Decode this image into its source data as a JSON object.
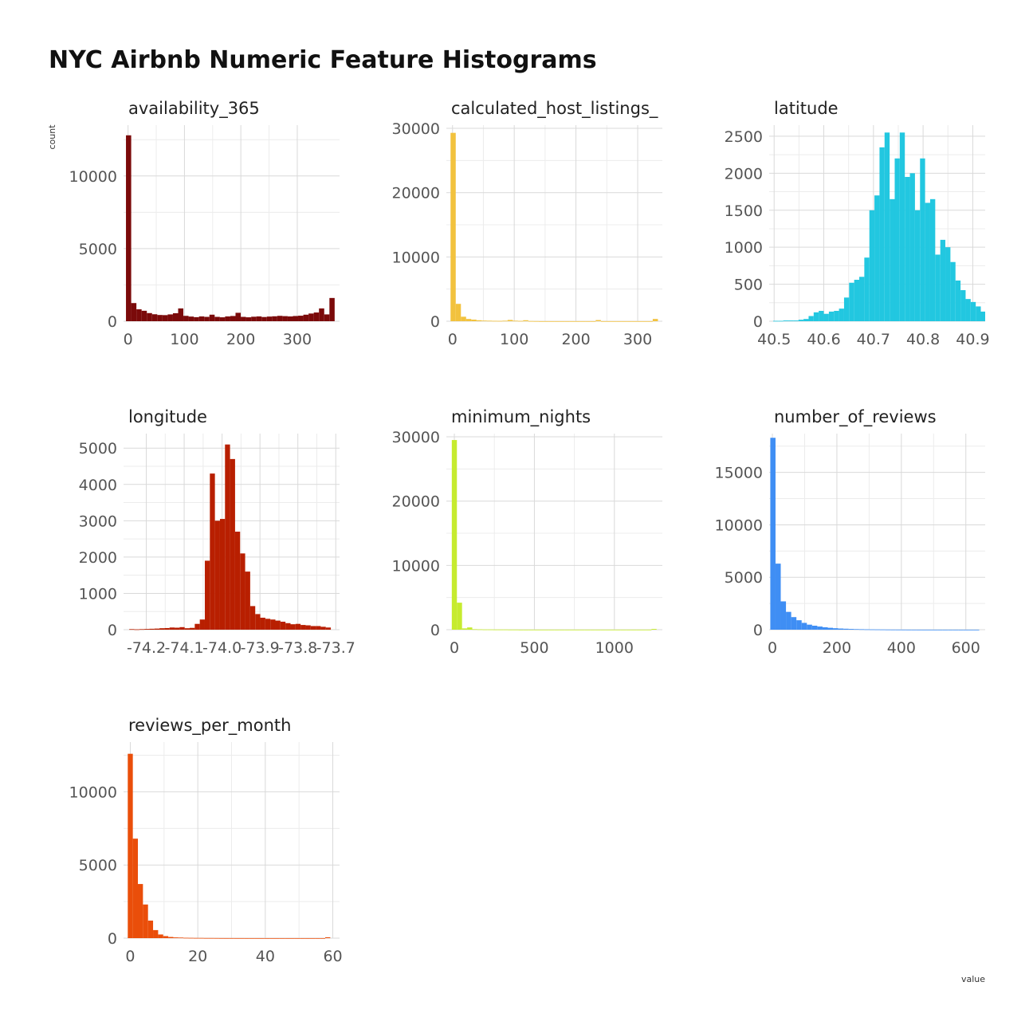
{
  "chart": {
    "title": "NYC Airbnb Numeric Feature Histograms",
    "xlabel": "value",
    "ylabel": "count"
  },
  "chart_data": [
    {
      "type": "bar",
      "title": "availability_365",
      "color": "#7B0A0A",
      "xlim": [
        -8,
        375
      ],
      "ylim": [
        0,
        13500
      ],
      "x_ticks": [
        0,
        100,
        200,
        300
      ],
      "x_tick_labels": [
        "0",
        "100",
        "200",
        "300"
      ],
      "y_ticks": [
        0,
        5000,
        10000
      ],
      "y_tick_labels": [
        "0",
        "5000",
        "10000"
      ],
      "bin_start": -3.7,
      "bin_width": 9.25,
      "values": [
        12800,
        1250,
        820,
        720,
        560,
        480,
        430,
        420,
        470,
        550,
        880,
        370,
        320,
        280,
        330,
        300,
        450,
        300,
        270,
        330,
        360,
        580,
        300,
        270,
        310,
        330,
        290,
        320,
        340,
        370,
        350,
        330,
        360,
        380,
        450,
        530,
        600,
        880,
        470,
        1600
      ]
    },
    {
      "type": "bar",
      "title": "calculated_host_listings_",
      "color": "#F2C23E",
      "xlim": [
        -10,
        340
      ],
      "ylim": [
        0,
        30500
      ],
      "x_ticks": [
        0,
        100,
        200,
        300
      ],
      "x_tick_labels": [
        "0",
        "100",
        "200",
        "300"
      ],
      "y_ticks": [
        0,
        10000,
        20000,
        30000
      ],
      "y_tick_labels": [
        "0",
        "10000",
        "20000",
        "30000"
      ],
      "bin_start": -3.2,
      "bin_width": 8.4,
      "values": [
        29300,
        2700,
        700,
        350,
        250,
        150,
        100,
        80,
        60,
        50,
        80,
        200,
        80,
        50,
        150,
        30,
        20,
        10,
        10,
        10,
        10,
        10,
        10,
        10,
        10,
        10,
        10,
        10,
        180,
        10,
        10,
        10,
        10,
        10,
        10,
        10,
        10,
        10,
        10,
        350
      ]
    },
    {
      "type": "bar",
      "title": "latitude",
      "color": "#22C7E0",
      "xlim": [
        40.49,
        40.925
      ],
      "ylim": [
        0,
        2650
      ],
      "x_ticks": [
        40.5,
        40.6,
        40.7,
        40.8,
        40.9
      ],
      "x_tick_labels": [
        "40.5",
        "40.6",
        "40.7",
        "40.8",
        "40.9"
      ],
      "y_ticks": [
        0,
        500,
        1000,
        1500,
        2000,
        2500
      ],
      "y_tick_labels": [
        "0",
        "500",
        "1000",
        "1500",
        "2000",
        "2500"
      ],
      "bin_start": 40.498,
      "bin_width": 0.0102,
      "values": [
        5,
        5,
        10,
        10,
        10,
        20,
        30,
        70,
        120,
        140,
        100,
        130,
        140,
        170,
        320,
        520,
        560,
        600,
        860,
        1500,
        1700,
        2350,
        2550,
        1650,
        2200,
        2550,
        1950,
        2000,
        1500,
        2200,
        1600,
        1650,
        900,
        1100,
        1000,
        800,
        550,
        420,
        300,
        260,
        200,
        130,
        60,
        40,
        20
      ]
    },
    {
      "type": "bar",
      "title": "longitude",
      "color": "#B81F00",
      "xlim": [
        -74.26,
        -73.69
      ],
      "ylim": [
        0,
        5400
      ],
      "x_ticks": [
        -74.2,
        -74.1,
        -74.0,
        -73.9,
        -73.8,
        -73.7
      ],
      "x_tick_labels": [
        "-74.2",
        "-74.1",
        "-74.0",
        "-73.9",
        "-73.8",
        "-73.7"
      ],
      "y_ticks": [
        0,
        1000,
        2000,
        3000,
        4000,
        5000
      ],
      "y_tick_labels": [
        "0",
        "1000",
        "2000",
        "3000",
        "4000",
        "5000"
      ],
      "bin_start": -74.245,
      "bin_width": 0.0133,
      "values": [
        15,
        10,
        15,
        20,
        25,
        30,
        40,
        45,
        60,
        55,
        70,
        40,
        50,
        160,
        280,
        1900,
        4300,
        3000,
        3050,
        5100,
        4700,
        2700,
        2100,
        1600,
        650,
        430,
        330,
        300,
        280,
        250,
        220,
        180,
        150,
        160,
        130,
        120,
        100,
        100,
        80,
        60
      ]
    },
    {
      "type": "bar",
      "title": "minimum_nights",
      "color": "#C6EB2F",
      "xlim": [
        -50,
        1300
      ],
      "ylim": [
        0,
        30500
      ],
      "x_ticks": [
        0,
        500,
        1000
      ],
      "x_tick_labels": [
        "0",
        "500",
        "1000"
      ],
      "y_ticks": [
        0,
        10000,
        20000,
        30000
      ],
      "y_tick_labels": [
        "0",
        "10000",
        "20000",
        "30000"
      ],
      "bin_start": -16,
      "bin_width": 32,
      "values": [
        29500,
        4200,
        200,
        350,
        80,
        60,
        40,
        40,
        30,
        30,
        30,
        20,
        20,
        10,
        10,
        10,
        10,
        10,
        10,
        10,
        10,
        10,
        10,
        10,
        10,
        10,
        10,
        10,
        10,
        10,
        10,
        10,
        10,
        10,
        10,
        10,
        10,
        10,
        10,
        120
      ]
    },
    {
      "type": "bar",
      "title": "number_of_reviews",
      "color": "#3F8EF4",
      "xlim": [
        -10,
        660
      ],
      "ylim": [
        0,
        18700
      ],
      "x_ticks": [
        0,
        200,
        400,
        600
      ],
      "x_tick_labels": [
        "0",
        "200",
        "400",
        "600"
      ],
      "y_ticks": [
        0,
        5000,
        10000,
        15000
      ],
      "y_tick_labels": [
        "0",
        "5000",
        "10000",
        "15000"
      ],
      "bin_start": -6.5,
      "bin_width": 16.2,
      "values": [
        18300,
        6300,
        2700,
        1700,
        1200,
        900,
        650,
        480,
        380,
        300,
        230,
        180,
        140,
        110,
        90,
        70,
        55,
        45,
        35,
        30,
        25,
        20,
        15,
        12,
        10,
        8,
        6,
        5,
        4,
        3,
        3,
        2,
        2,
        2,
        2,
        2,
        1,
        1,
        1,
        1
      ]
    },
    {
      "type": "bar",
      "title": "reviews_per_month",
      "color": "#EA4E0A",
      "xlim": [
        -2,
        62
      ],
      "ylim": [
        0,
        13400
      ],
      "x_ticks": [
        0,
        20,
        40,
        60
      ],
      "x_tick_labels": [
        "0",
        "20",
        "40",
        "60"
      ],
      "y_ticks": [
        0,
        5000,
        10000
      ],
      "y_tick_labels": [
        "0",
        "5000",
        "10000"
      ],
      "bin_start": -0.75,
      "bin_width": 1.5,
      "values": [
        12600,
        6800,
        3700,
        2300,
        1200,
        550,
        250,
        140,
        80,
        50,
        40,
        25,
        20,
        15,
        15,
        10,
        10,
        8,
        6,
        5,
        5,
        4,
        4,
        3,
        3,
        3,
        2,
        2,
        2,
        2,
        2,
        2,
        2,
        2,
        2,
        2,
        2,
        2,
        2,
        60
      ]
    }
  ]
}
